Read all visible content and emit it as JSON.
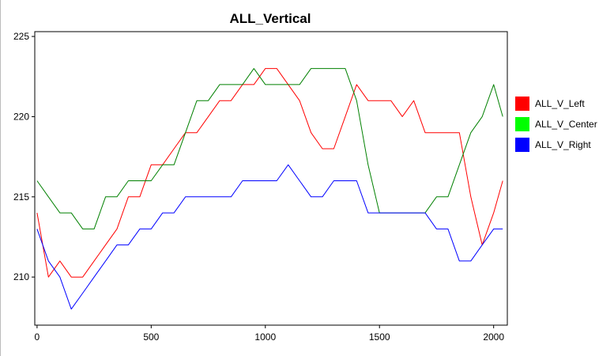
{
  "chart_data": {
    "type": "line",
    "title": "ALL_Vertical",
    "xlabel": "",
    "ylabel": "",
    "xlim": [
      -10,
      2060
    ],
    "ylim": [
      207,
      225.3
    ],
    "x_ticks": [
      0,
      500,
      1000,
      1500,
      2000
    ],
    "y_ticks": [
      210,
      215,
      220,
      225
    ],
    "grid": false,
    "legend_position": "right",
    "series": [
      {
        "name": "ALL_V_Left",
        "color": "#ff0000",
        "x": [
          0,
          50,
          100,
          150,
          200,
          250,
          300,
          350,
          400,
          450,
          500,
          550,
          600,
          650,
          700,
          750,
          800,
          850,
          900,
          950,
          1000,
          1050,
          1100,
          1150,
          1200,
          1250,
          1300,
          1350,
          1400,
          1450,
          1500,
          1550,
          1600,
          1650,
          1700,
          1750,
          1800,
          1850,
          1900,
          1950,
          2000,
          2040
        ],
        "values": [
          214,
          210,
          211,
          210,
          210,
          211,
          212,
          213,
          215,
          215,
          217,
          217,
          218,
          219,
          219,
          220,
          221,
          221,
          222,
          222,
          223,
          223,
          222,
          221,
          219,
          218,
          218,
          220,
          222,
          221,
          221,
          221,
          220,
          221,
          219,
          219,
          219,
          219,
          215,
          212,
          214,
          216
        ]
      },
      {
        "name": "ALL_V_Center",
        "color": "#008000",
        "x": [
          0,
          50,
          100,
          150,
          200,
          250,
          300,
          350,
          400,
          450,
          500,
          550,
          600,
          650,
          700,
          750,
          800,
          850,
          900,
          950,
          1000,
          1050,
          1100,
          1150,
          1200,
          1250,
          1300,
          1350,
          1400,
          1450,
          1500,
          1550,
          1600,
          1650,
          1700,
          1750,
          1800,
          1850,
          1900,
          1950,
          2000,
          2040
        ],
        "values": [
          216,
          215,
          214,
          214,
          213,
          213,
          215,
          215,
          216,
          216,
          216,
          217,
          217,
          219,
          221,
          221,
          222,
          222,
          222,
          223,
          222,
          222,
          222,
          222,
          223,
          223,
          223,
          223,
          221,
          217,
          214,
          214,
          214,
          214,
          214,
          215,
          215,
          217,
          219,
          220,
          222,
          220
        ]
      },
      {
        "name": "ALL_V_Right",
        "color": "#0000ff",
        "x": [
          0,
          50,
          100,
          150,
          200,
          250,
          300,
          350,
          400,
          450,
          500,
          550,
          600,
          650,
          700,
          750,
          800,
          850,
          900,
          950,
          1000,
          1050,
          1100,
          1150,
          1200,
          1250,
          1300,
          1350,
          1400,
          1450,
          1500,
          1550,
          1600,
          1650,
          1700,
          1750,
          1800,
          1850,
          1900,
          1950,
          2000,
          2040
        ],
        "values": [
          213,
          211,
          210,
          208,
          209,
          210,
          211,
          212,
          212,
          213,
          213,
          214,
          214,
          215,
          215,
          215,
          215,
          215,
          216,
          216,
          216,
          216,
          217,
          216,
          215,
          215,
          216,
          216,
          216,
          214,
          214,
          214,
          214,
          214,
          214,
          213,
          213,
          211,
          211,
          212,
          213,
          213
        ]
      }
    ]
  }
}
